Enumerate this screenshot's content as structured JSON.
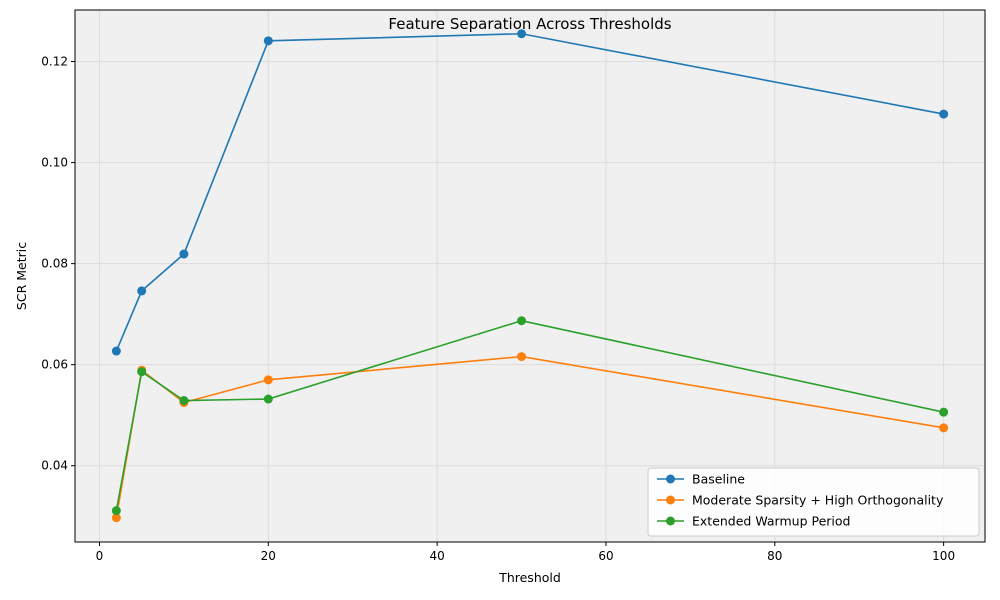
{
  "chart_data": {
    "type": "line",
    "title": "Feature Separation Across Thresholds",
    "xlabel": "Threshold",
    "ylabel": "SCR Metric",
    "x": [
      2,
      5,
      10,
      20,
      50,
      100
    ],
    "xlim": [
      -2.9,
      104.9
    ],
    "ylim": [
      0.0249,
      0.1302
    ],
    "xticks": [
      0,
      20,
      40,
      60,
      80,
      100
    ],
    "xtick_labels": [
      "0",
      "20",
      "40",
      "60",
      "80",
      "100"
    ],
    "yticks": [
      0.04,
      0.06,
      0.08,
      0.1,
      0.12
    ],
    "ytick_labels": [
      "0.04",
      "0.06",
      "0.08",
      "0.10",
      "0.12"
    ],
    "grid": true,
    "legend_position": "lower-right",
    "series": [
      {
        "name": "Baseline",
        "color": "#1f77b4",
        "values": [
          0.0627,
          0.0746,
          0.0819,
          0.1241,
          0.1255,
          0.1096
        ]
      },
      {
        "name": "Moderate Sparsity + High Orthogonality",
        "color": "#ff7f0e",
        "values": [
          0.0297,
          0.0589,
          0.0525,
          0.057,
          0.0616,
          0.0475
        ]
      },
      {
        "name": "Extended Warmup Period",
        "color": "#2ca02c",
        "values": [
          0.0311,
          0.0586,
          0.0529,
          0.0532,
          0.0687,
          0.0506
        ]
      }
    ]
  }
}
